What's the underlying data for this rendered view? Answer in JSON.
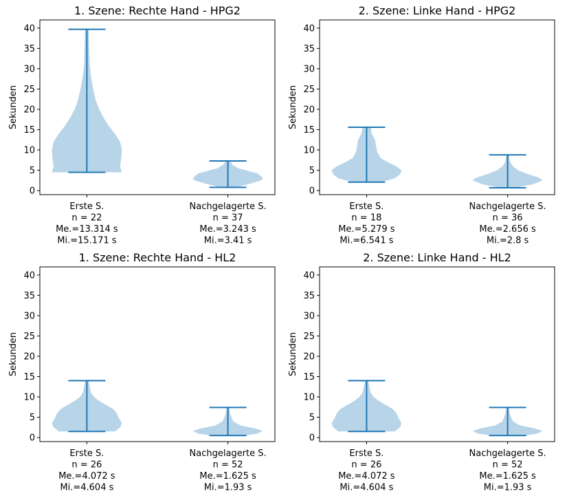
{
  "colors": {
    "body": "#b8d4e8",
    "line": "#1f77b4"
  },
  "chart_data": [
    {
      "type": "violin",
      "title": "1. Szene: Rechte Hand - HPG2",
      "ylabel": "Sekunden",
      "ylim": [
        -1,
        42
      ],
      "yticks": [
        0,
        5,
        10,
        15,
        20,
        25,
        30,
        35,
        40
      ],
      "categories": [
        {
          "lines": [
            "Erste S.",
            "n = 22",
            "Me.=13.314 s",
            "Mi.=15.171 s"
          ],
          "min": 4.5,
          "max": 39.7,
          "profile": [
            [
              4.5,
              1.0
            ],
            [
              6,
              0.95
            ],
            [
              8,
              0.98
            ],
            [
              10,
              1.0
            ],
            [
              12,
              0.95
            ],
            [
              14,
              0.8
            ],
            [
              16,
              0.62
            ],
            [
              18,
              0.47
            ],
            [
              20,
              0.35
            ],
            [
              22,
              0.26
            ],
            [
              25,
              0.18
            ],
            [
              28,
              0.12
            ],
            [
              31,
              0.08
            ],
            [
              34,
              0.07
            ],
            [
              37,
              0.06
            ],
            [
              39.7,
              0.05
            ]
          ]
        },
        {
          "lines": [
            "Nachgelagerte S.",
            "n = 37",
            "Me.=3.243 s",
            "Mi.=3.41 s"
          ],
          "min": 0.8,
          "max": 7.3,
          "profile": [
            [
              0.8,
              0.2
            ],
            [
              1.5,
              0.55
            ],
            [
              2.5,
              0.95
            ],
            [
              3,
              1.0
            ],
            [
              3.5,
              0.95
            ],
            [
              4.2,
              0.85
            ],
            [
              4.8,
              0.6
            ],
            [
              5.5,
              0.3
            ],
            [
              6.3,
              0.14
            ],
            [
              7.3,
              0.06
            ]
          ]
        }
      ]
    },
    {
      "type": "violin",
      "title": "2. Szene: Linke Hand - HPG2",
      "ylabel": "Sekunden",
      "ylim": [
        -1,
        42
      ],
      "yticks": [
        0,
        5,
        10,
        15,
        20,
        25,
        30,
        35,
        40
      ],
      "categories": [
        {
          "lines": [
            "Erste S.",
            "n = 18",
            "Me.=5.279 s",
            "Mi.=6.541 s"
          ],
          "min": 2.1,
          "max": 15.6,
          "profile": [
            [
              2.1,
              0.4
            ],
            [
              3,
              0.8
            ],
            [
              4,
              0.95
            ],
            [
              5,
              1.0
            ],
            [
              6,
              0.85
            ],
            [
              7,
              0.6
            ],
            [
              8,
              0.4
            ],
            [
              9.5,
              0.3
            ],
            [
              11,
              0.27
            ],
            [
              12.5,
              0.24
            ],
            [
              14,
              0.15
            ],
            [
              15.6,
              0.12
            ]
          ]
        },
        {
          "lines": [
            "Nachgelagerte S.",
            "n = 36",
            "Me.=2.656 s",
            "Mi.=2.8 s"
          ],
          "min": 0.7,
          "max": 8.8,
          "profile": [
            [
              0.7,
              0.2
            ],
            [
              1.5,
              0.7
            ],
            [
              2.5,
              1.0
            ],
            [
              3.2,
              0.9
            ],
            [
              4,
              0.6
            ],
            [
              5,
              0.3
            ],
            [
              6,
              0.15
            ],
            [
              7,
              0.07
            ],
            [
              8,
              0.05
            ],
            [
              8.8,
              0.04
            ]
          ]
        }
      ]
    },
    {
      "type": "violin",
      "title": "1. Szene: Rechte Hand - HL2",
      "ylabel": "Sekunden",
      "ylim": [
        -1,
        42
      ],
      "yticks": [
        0,
        5,
        10,
        15,
        20,
        25,
        30,
        35,
        40
      ],
      "categories": [
        {
          "lines": [
            "Erste S.",
            "n = 26",
            "Me.=4.072 s",
            "Mi.=4.604 s"
          ],
          "min": 1.5,
          "max": 14.0,
          "profile": [
            [
              1.5,
              0.8
            ],
            [
              2.5,
              0.95
            ],
            [
              3.5,
              1.0
            ],
            [
              5,
              0.9
            ],
            [
              6,
              0.85
            ],
            [
              7,
              0.75
            ],
            [
              8,
              0.55
            ],
            [
              9,
              0.35
            ],
            [
              10,
              0.2
            ],
            [
              11,
              0.12
            ],
            [
              12.5,
              0.08
            ],
            [
              14,
              0.05
            ]
          ]
        },
        {
          "lines": [
            "Nachgelagerte S.",
            "n = 52",
            "Me.=1.625 s",
            "Mi.=1.93 s"
          ],
          "min": 0.5,
          "max": 7.4,
          "profile": [
            [
              0.5,
              0.5
            ],
            [
              1,
              0.85
            ],
            [
              1.6,
              1.0
            ],
            [
              2.2,
              0.8
            ],
            [
              3,
              0.35
            ],
            [
              4,
              0.15
            ],
            [
              5,
              0.1
            ],
            [
              6,
              0.06
            ],
            [
              7.4,
              0.04
            ]
          ]
        }
      ]
    },
    {
      "type": "violin",
      "title": "2. Szene: Linke Hand - HL2",
      "ylabel": "Sekunden",
      "ylim": [
        -1,
        42
      ],
      "yticks": [
        0,
        5,
        10,
        15,
        20,
        25,
        30,
        35,
        40
      ],
      "categories": [
        {
          "lines": [
            "Erste S.",
            "n = 26",
            "Me.=4.072 s",
            "Mi.=4.604 s"
          ],
          "min": 1.5,
          "max": 14.0,
          "profile": [
            [
              1.5,
              0.8
            ],
            [
              2.5,
              0.95
            ],
            [
              3.5,
              1.0
            ],
            [
              5,
              0.9
            ],
            [
              6,
              0.85
            ],
            [
              7,
              0.75
            ],
            [
              8,
              0.55
            ],
            [
              9,
              0.35
            ],
            [
              10,
              0.2
            ],
            [
              11,
              0.12
            ],
            [
              12.5,
              0.08
            ],
            [
              14,
              0.05
            ]
          ]
        },
        {
          "lines": [
            "Nachgelagerte S.",
            "n = 52",
            "Me.=1.625 s",
            "Mi.=1.93 s"
          ],
          "min": 0.5,
          "max": 7.4,
          "profile": [
            [
              0.5,
              0.5
            ],
            [
              1,
              0.85
            ],
            [
              1.6,
              1.0
            ],
            [
              2.2,
              0.8
            ],
            [
              3,
              0.35
            ],
            [
              4,
              0.15
            ],
            [
              5,
              0.1
            ],
            [
              6,
              0.06
            ],
            [
              7.4,
              0.04
            ]
          ]
        }
      ]
    }
  ]
}
